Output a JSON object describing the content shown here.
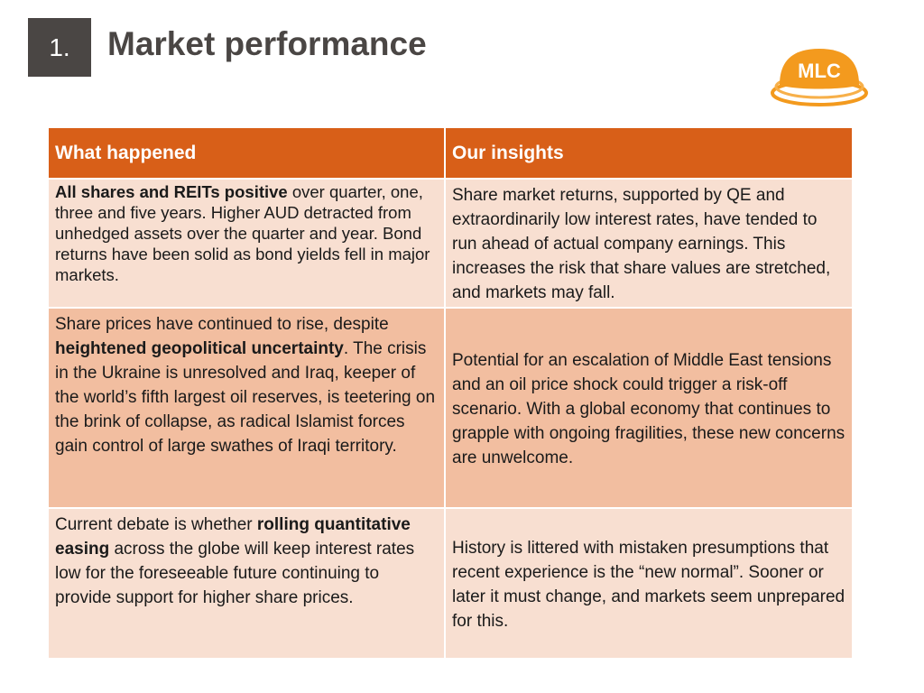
{
  "slide": {
    "number": "1.",
    "title": "Market performance",
    "logo_text": "MLC"
  },
  "colors": {
    "header_orange": "#d85f18",
    "row_light": "#f8dfd1",
    "row_dark": "#f2bea0",
    "number_box": "#4a4644",
    "logo_orange": "#f39a1e"
  },
  "table": {
    "headers": [
      "What happened",
      "Our insights"
    ],
    "rows": [
      {
        "left": {
          "bold_lead": "All shares and REITs positive",
          "text": " over quarter, one, three and five years. Higher AUD detracted from unhedged assets over the quarter and year. Bond returns have been solid as bond yields fell in major markets."
        },
        "right": "Share market returns, supported by QE and extraordinarily low interest rates, have tended to run ahead of actual company earnings. This increases the risk that share values are stretched, and markets may fall."
      },
      {
        "left": {
          "pre": "Share prices have continued to rise, despite ",
          "bold": "heightened geopolitical uncertainty",
          "post": ". The crisis in the Ukraine is unresolved and Iraq, keeper of the world’s fifth largest oil reserves, is teetering on the brink of collapse, as radical Islamist forces gain control of large swathes of Iraqi territory."
        },
        "right": "Potential for an escalation of Middle East tensions and an oil price shock could trigger a risk-off scenario. With a global economy that continues to grapple with ongoing fragilities, these new concerns are unwelcome."
      },
      {
        "left": {
          "pre": "Current debate is whether ",
          "bold": "rolling quantitative easing",
          "post": " across the globe will keep interest rates low for the foreseeable future continuing to provide support for higher share prices."
        },
        "right": "History is littered with mistaken presumptions that recent experience is the “new normal”. Sooner or later it must change, and markets seem unprepared for this."
      }
    ]
  }
}
